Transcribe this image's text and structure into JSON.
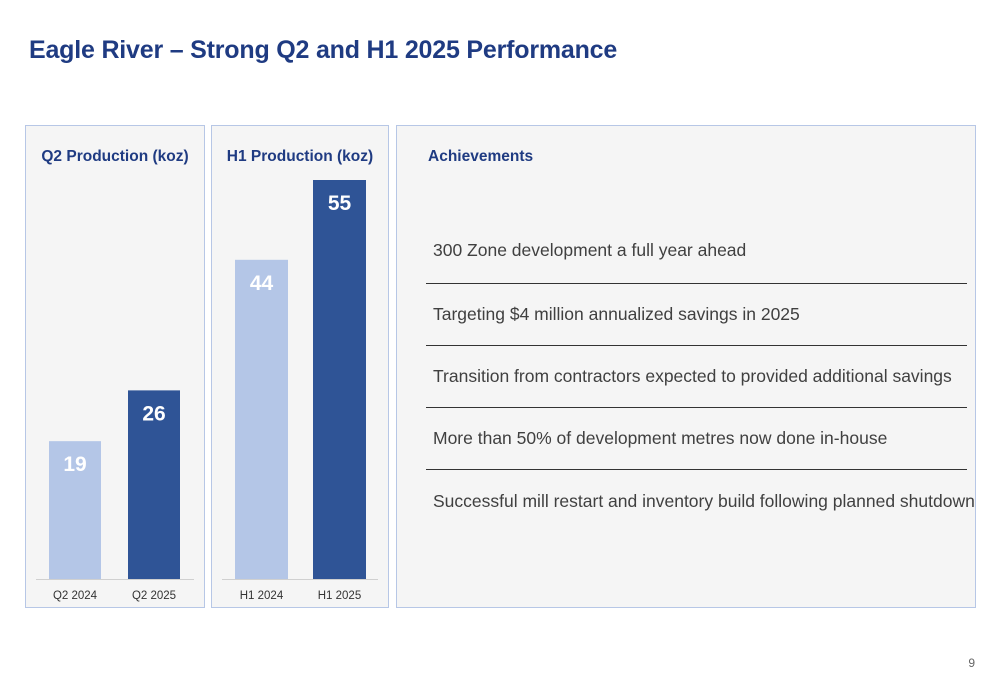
{
  "title": "Eagle River – Strong Q2 and H1 2025 Performance",
  "panels": {
    "q2": {
      "title": "Q2 Production (koz)"
    },
    "h1": {
      "title": "H1 Production (koz)"
    },
    "achievements": {
      "title": "Achievements",
      "items": [
        "300 Zone development a full year ahead",
        "Targeting $4 million annualized savings in 2025",
        "Transition from contractors expected to provided additional savings",
        "More than 50% of development metres now done in-house",
        "Successful mill restart and inventory build following planned shutdown"
      ]
    }
  },
  "chart_data": [
    {
      "type": "bar",
      "title": "Q2 Production (koz)",
      "categories": [
        "Q2 2024",
        "Q2 2025"
      ],
      "values": [
        19,
        26
      ],
      "colors": [
        "#b4c6e7",
        "#2f5496"
      ],
      "ylim": [
        0,
        55
      ],
      "grid": false
    },
    {
      "type": "bar",
      "title": "H1 Production (koz)",
      "categories": [
        "H1 2024",
        "H1 2025"
      ],
      "values": [
        44,
        55
      ],
      "colors": [
        "#b4c6e7",
        "#2f5496"
      ],
      "ylim": [
        0,
        55
      ],
      "grid": false
    }
  ],
  "page_number": "9"
}
